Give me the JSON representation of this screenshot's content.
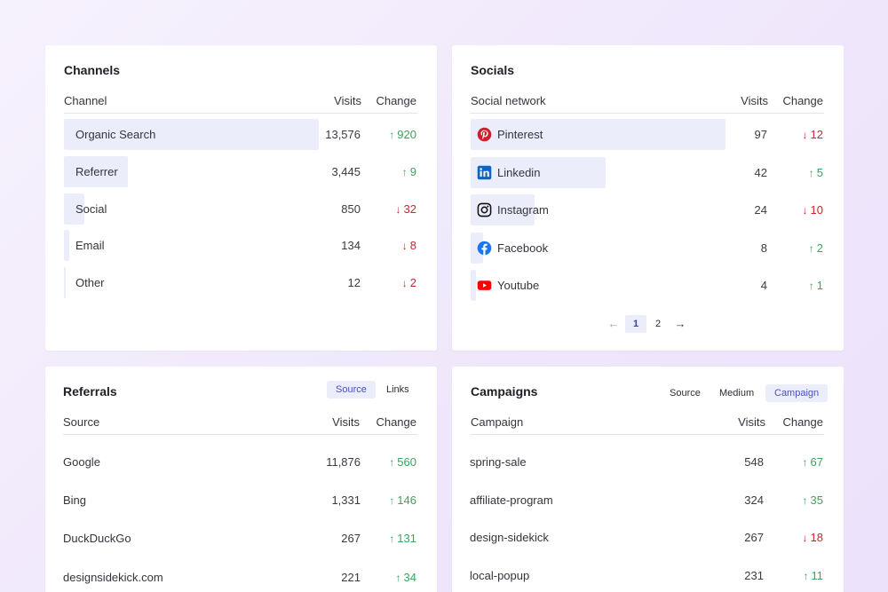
{
  "channels": {
    "title": "Channels",
    "headers": {
      "name": "Channel",
      "visits": "Visits",
      "change": "Change"
    },
    "rows": [
      {
        "name": "Organic Search",
        "visits": "13,576",
        "change": "920",
        "dir": "up",
        "share": 1.0
      },
      {
        "name": "Referrer",
        "visits": "3,445",
        "change": "9",
        "dir": "up",
        "share": 0.25
      },
      {
        "name": "Social",
        "visits": "850",
        "change": "32",
        "dir": "down",
        "share": 0.08
      },
      {
        "name": "Email",
        "visits": "134",
        "change": "8",
        "dir": "down",
        "share": 0.02
      },
      {
        "name": "Other",
        "visits": "12",
        "change": "2",
        "dir": "down",
        "share": 0.005
      }
    ]
  },
  "socials": {
    "title": "Socials",
    "headers": {
      "name": "Social network",
      "visits": "Visits",
      "change": "Change"
    },
    "rows": [
      {
        "name": "Pinterest",
        "icon": "pinterest-icon",
        "visits": "97",
        "change": "12",
        "dir": "down",
        "share": 1.0
      },
      {
        "name": "Linkedin",
        "icon": "linkedin-icon",
        "visits": "42",
        "change": "5",
        "dir": "up",
        "share": 0.53
      },
      {
        "name": "Instagram",
        "icon": "instagram-icon",
        "visits": "24",
        "change": "10",
        "dir": "down",
        "share": 0.25
      },
      {
        "name": "Facebook",
        "icon": "facebook-icon",
        "visits": "8",
        "change": "2",
        "dir": "up",
        "share": 0.05
      },
      {
        "name": "Youtube",
        "icon": "youtube-icon",
        "visits": "4",
        "change": "1",
        "dir": "up",
        "share": 0.02
      }
    ],
    "pager": {
      "prev": "←",
      "pages": [
        "1",
        "2"
      ],
      "current": "1",
      "next": "→"
    }
  },
  "referrals": {
    "title": "Referrals",
    "tabs": [
      "Source",
      "Links"
    ],
    "active_tab": "Source",
    "headers": {
      "name": "Source",
      "visits": "Visits",
      "change": "Change"
    },
    "rows": [
      {
        "name": "Google",
        "visits": "11,876",
        "change": "560",
        "dir": "up"
      },
      {
        "name": "Bing",
        "visits": "1,331",
        "change": "146",
        "dir": "up"
      },
      {
        "name": "DuckDuckGo",
        "visits": "267",
        "change": "131",
        "dir": "up"
      },
      {
        "name": "designsidekick.com",
        "visits": "221",
        "change": "34",
        "dir": "up"
      }
    ]
  },
  "campaigns": {
    "title": "Campaigns",
    "tabs": [
      "Source",
      "Medium",
      "Campaign"
    ],
    "active_tab": "Campaign",
    "headers": {
      "name": "Campaign",
      "visits": "Visits",
      "change": "Change"
    },
    "rows": [
      {
        "name": "spring-sale",
        "visits": "548",
        "change": "67",
        "dir": "up"
      },
      {
        "name": "affiliate-program",
        "visits": "324",
        "change": "35",
        "dir": "up"
      },
      {
        "name": "design-sidekick",
        "visits": "267",
        "change": "18",
        "dir": "down"
      },
      {
        "name": "local-popup",
        "visits": "231",
        "change": "11",
        "dir": "up"
      }
    ]
  },
  "colors": {
    "up": "#3ea35c",
    "down": "#c8282f",
    "bar": "#ebedfb",
    "accent": "#4a52b8"
  },
  "arrows": {
    "up": "↑",
    "down": "↓"
  }
}
